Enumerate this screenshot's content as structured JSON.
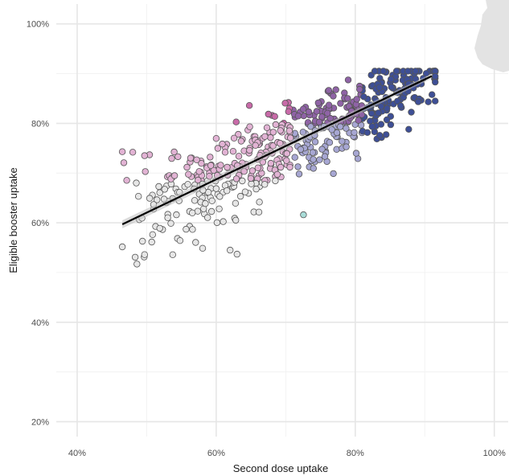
{
  "chart_data": {
    "type": "scatter",
    "xlabel": "Second dose uptake",
    "ylabel": "Eligible booster uptake",
    "xlim": [
      0.37,
      1.02
    ],
    "ylim": [
      0.17,
      1.04
    ],
    "x_major_ticks": [
      0.4,
      0.6,
      0.8,
      1.0
    ],
    "x_minor_ticks": [
      0.5,
      0.7,
      0.9
    ],
    "y_major_ticks": [
      0.2,
      0.4,
      0.6,
      0.8,
      1.0
    ],
    "y_minor_ticks": [
      0.3,
      0.5,
      0.7,
      0.9
    ],
    "x_tick_labels": [
      "40%",
      "60%",
      "80%",
      "100%"
    ],
    "y_tick_labels": [
      "20%",
      "40%",
      "60%",
      "80%",
      "100%"
    ],
    "grid": true,
    "legend": "none",
    "colors": {
      "low_low": "#e6e6e6",
      "mid_low": "#a9dcd8",
      "high_low": "#5e93ad",
      "low_mid": "#e2b3d4",
      "mid_mid": "#a7a7d3",
      "high_mid": "#3e4f96",
      "low_high": "#c86aa8",
      "mid_high": "#8f63a6",
      "high_high": "#3e4f96",
      "fit_line": "#000000",
      "fit_band": "#bdbdbd"
    },
    "trend_line": {
      "x": [
        0.465,
        0.91
      ],
      "y": [
        0.597,
        0.895
      ]
    },
    "n_points": 560
  }
}
